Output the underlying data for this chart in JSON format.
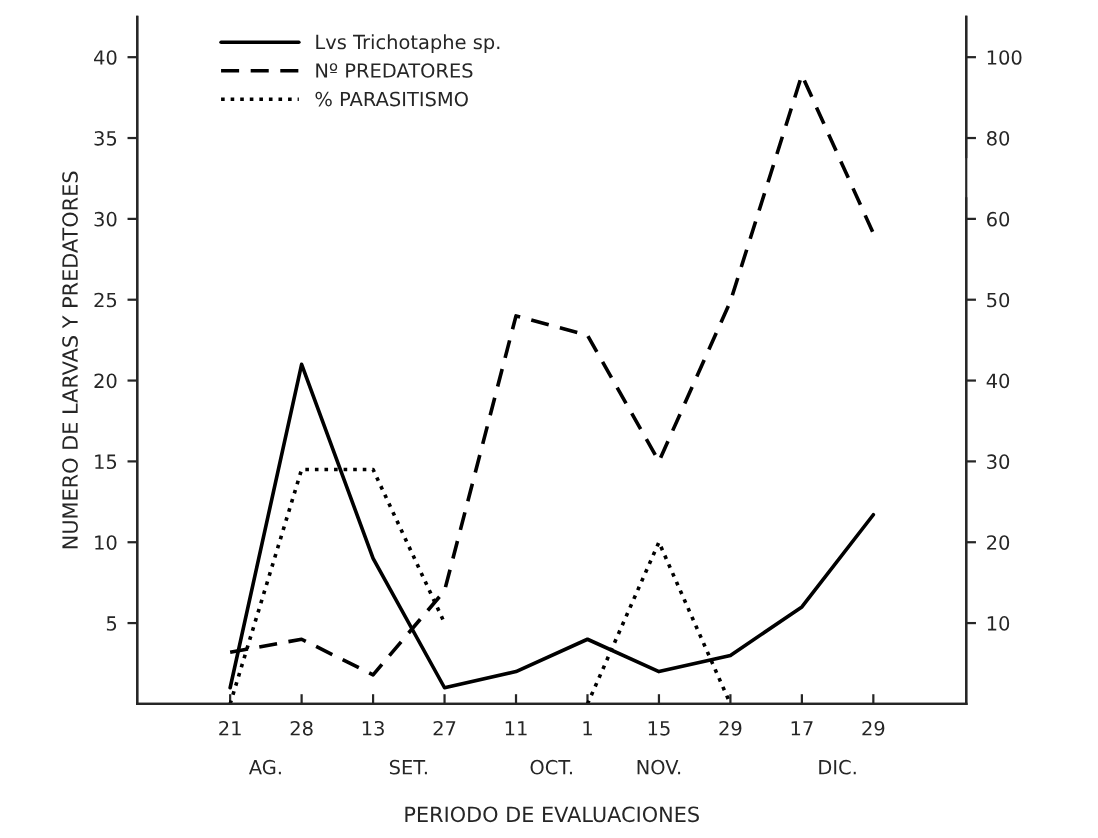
{
  "chart_data": {
    "type": "line",
    "xlabel": "PERIODO DE EVALUACIONES",
    "ylabel": "NUMERO DE LARVAS Y PREDATORES",
    "categories": [
      "21",
      "28",
      "13",
      "27",
      "11",
      "1",
      "15",
      "29",
      "17",
      "29"
    ],
    "series": [
      {
        "name": "Lvs Trichotaphe sp.",
        "color": "#000000",
        "line_style": "solid",
        "values": [
          1,
          21,
          9,
          1,
          2,
          4,
          2,
          3,
          6,
          11.7
        ]
      },
      {
        "name": "Nº PREDATORES",
        "color": "#000000",
        "line_style": "dashed",
        "values": [
          3.2,
          4,
          1.8,
          7,
          24,
          22.8,
          15,
          24.9,
          38.9,
          29.1
        ]
      },
      {
        "name": "% PARASITISMO",
        "color": "#000000",
        "line_style": "dotted",
        "axis": "y2",
        "values": [
          0,
          29,
          29,
          10,
          null,
          0,
          20,
          0,
          null,
          null
        ]
      }
    ],
    "ylim": [
      0,
      42.5
    ],
    "yticks": [
      5,
      10,
      15,
      20,
      25,
      30,
      35,
      40
    ],
    "y2lim": [
      0,
      85
    ],
    "y2ticks": [
      10,
      20,
      30,
      40,
      50,
      60
    ],
    "y3lim": [
      -60,
      110
    ],
    "y3ticks": [
      80,
      100
    ],
    "annotations": [
      "AG.",
      "SET.",
      "OCT.",
      "NOV.",
      "DIC."
    ],
    "legend": "top left",
    "grid": false,
    "marker": "none"
  }
}
